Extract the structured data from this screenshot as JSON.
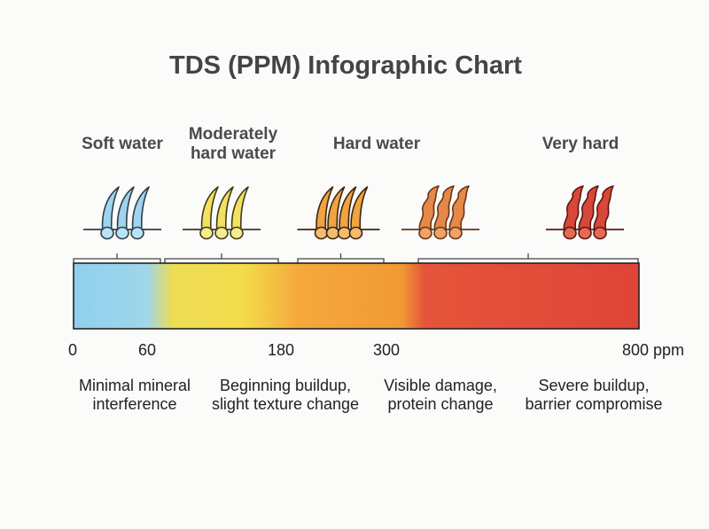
{
  "title": "TDS (PPM) Infographic Chart",
  "chart_data": {
    "type": "bar",
    "title": "TDS (PPM) Infographic Chart",
    "unit": "ppm",
    "axis_ticks": [
      {
        "value": 0,
        "label": "0"
      },
      {
        "value": 60,
        "label": "60"
      },
      {
        "value": 180,
        "label": "180"
      },
      {
        "value": 300,
        "label": "300"
      },
      {
        "value": 800,
        "label": "800 ppm"
      }
    ],
    "categories": [
      {
        "name": "Soft water",
        "range": [
          0,
          60
        ],
        "color": "#8fd0ee",
        "description": "Minimal mineral interference"
      },
      {
        "name": "Moderately hard water",
        "range": [
          60,
          180
        ],
        "color": "#f1dc4a",
        "description": "Beginning buildup, slight texture change"
      },
      {
        "name": "Hard water",
        "range": [
          180,
          300
        ],
        "color": "#f19a33",
        "description": "Visible damage, protein change"
      },
      {
        "name": "Very hard",
        "range": [
          300,
          800
        ],
        "color": "#e14a3c",
        "description": "Severe buildup, barrier compromise"
      }
    ]
  },
  "category_labels": [
    {
      "lines": [
        "Soft water"
      ]
    },
    {
      "lines": [
        "Moderately",
        "hard water"
      ]
    },
    {
      "lines": [
        "Hard water"
      ]
    },
    {
      "lines": [
        "Very hard"
      ]
    }
  ],
  "descriptions": [
    {
      "lines": [
        "Minimal mineral",
        "interference"
      ]
    },
    {
      "lines": [
        "Beginning buildup,",
        "slight texture change"
      ]
    },
    {
      "lines": [
        "Visible damage,",
        "protein change"
      ]
    },
    {
      "lines": [
        "Severe buildup,",
        "barrier compromise"
      ]
    }
  ],
  "icons": [
    {
      "name": "soft-water-hair-icon",
      "fill": "#9fd4ef",
      "bulb": "#b9e2f5",
      "stroke": "#2d3e4a"
    },
    {
      "name": "moderately-hard-water-hair-icon",
      "fill": "#f3e060",
      "bulb": "#f7eb8e",
      "stroke": "#3e3a1c"
    },
    {
      "name": "hard-water-hair-icon",
      "fill": "#f0a340",
      "bulb": "#f4bd6e",
      "stroke": "#3c2510"
    },
    {
      "name": "very-hard-water-hair-icon",
      "fill": "#e5884a",
      "bulb": "#eea366",
      "stroke": "#6a3513"
    },
    {
      "name": "severe-hard-water-hair-icon",
      "fill": "#d9473a",
      "bulb": "#e36a55",
      "stroke": "#5c1710"
    }
  ]
}
